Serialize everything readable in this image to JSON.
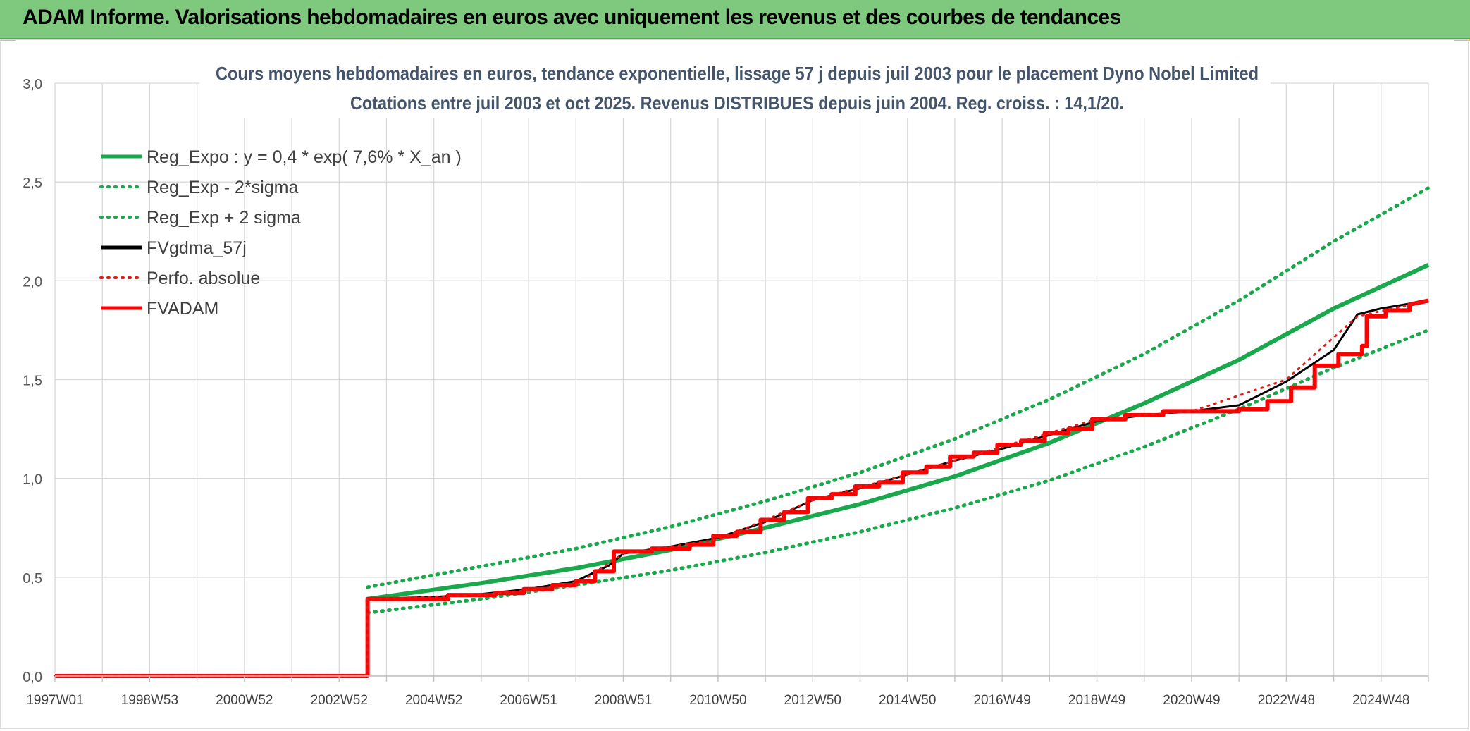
{
  "header": {
    "title": "ADAM Informe. Valorisations hebdomadaires en euros avec uniquement les revenus et des courbes de tendances"
  },
  "chart_data": {
    "type": "line",
    "title": "Cours moyens hebdomadaires en euros, tendance exponentielle, lissage 57 j depuis juil 2003 pour le placement Dyno Nobel Limited",
    "subtitle": "Cotations entre juil 2003 et oct 2025. Revenus DISTRIBUES depuis juin 2004. Reg. croiss. : 14,1/20.",
    "ylim": [
      0,
      3
    ],
    "xlim": [
      1997.0,
      2026.0
    ],
    "y_ticks": [
      "0,0",
      "0,5",
      "1,0",
      "1,5",
      "2,0",
      "2,5",
      "3,0"
    ],
    "x_ticks": [
      {
        "label": "1997W01",
        "t": 1997.0
      },
      {
        "label": "1998W53",
        "t": 1999.0
      },
      {
        "label": "2000W52",
        "t": 2001.0
      },
      {
        "label": "2002W52",
        "t": 2003.0
      },
      {
        "label": "2004W52",
        "t": 2005.0
      },
      {
        "label": "2006W51",
        "t": 2007.0
      },
      {
        "label": "2008W51",
        "t": 2009.0
      },
      {
        "label": "2010W50",
        "t": 2011.0
      },
      {
        "label": "2012W50",
        "t": 2013.0
      },
      {
        "label": "2014W50",
        "t": 2015.0
      },
      {
        "label": "2016W49",
        "t": 2017.0
      },
      {
        "label": "2018W49",
        "t": 2019.0
      },
      {
        "label": "2020W49",
        "t": 2021.0
      },
      {
        "label": "2022W48",
        "t": 2023.0
      },
      {
        "label": "2024W48",
        "t": 2025.0
      }
    ],
    "grid": true,
    "legend_position": "top-left",
    "series": [
      {
        "name": "Reg_Expo : y = 0,4 * exp( 7,6% *  X_an )",
        "color": "#1aa84c",
        "style": "solid",
        "points": [
          [
            2003.6,
            0.39
          ],
          [
            2006,
            0.47
          ],
          [
            2008,
            0.546
          ],
          [
            2010,
            0.638
          ],
          [
            2012,
            0.75
          ],
          [
            2014,
            0.87
          ],
          [
            2016,
            1.01
          ],
          [
            2018,
            1.18
          ],
          [
            2020,
            1.38
          ],
          [
            2022,
            1.6
          ],
          [
            2024,
            1.86
          ],
          [
            2026,
            2.08
          ]
        ]
      },
      {
        "name": "Reg_Exp - 2*sigma",
        "color": "#1aa84c",
        "style": "dotted",
        "points": [
          [
            2003.6,
            0.32
          ],
          [
            2006,
            0.39
          ],
          [
            2008,
            0.46
          ],
          [
            2010,
            0.535
          ],
          [
            2012,
            0.625
          ],
          [
            2014,
            0.73
          ],
          [
            2016,
            0.85
          ],
          [
            2018,
            0.99
          ],
          [
            2020,
            1.16
          ],
          [
            2022,
            1.35
          ],
          [
            2024,
            1.56
          ],
          [
            2026,
            1.75
          ]
        ]
      },
      {
        "name": "Reg_Exp + 2 sigma",
        "color": "#1aa84c",
        "style": "dotted",
        "points": [
          [
            2003.6,
            0.45
          ],
          [
            2006,
            0.555
          ],
          [
            2008,
            0.645
          ],
          [
            2010,
            0.755
          ],
          [
            2012,
            0.885
          ],
          [
            2014,
            1.03
          ],
          [
            2016,
            1.2
          ],
          [
            2018,
            1.4
          ],
          [
            2020,
            1.63
          ],
          [
            2022,
            1.9
          ],
          [
            2024,
            2.2
          ],
          [
            2026,
            2.47
          ]
        ]
      },
      {
        "name": "FVgdma_57j",
        "color": "#000000",
        "style": "solid",
        "points": [
          [
            1997,
            0
          ],
          [
            2003.6,
            0
          ],
          [
            2003.6,
            0.39
          ],
          [
            2005,
            0.4
          ],
          [
            2006,
            0.415
          ],
          [
            2007,
            0.44
          ],
          [
            2008,
            0.48
          ],
          [
            2008.7,
            0.56
          ],
          [
            2009,
            0.62
          ],
          [
            2010,
            0.655
          ],
          [
            2011,
            0.7
          ],
          [
            2012,
            0.78
          ],
          [
            2013,
            0.89
          ],
          [
            2014,
            0.95
          ],
          [
            2015,
            1.02
          ],
          [
            2016,
            1.09
          ],
          [
            2017,
            1.15
          ],
          [
            2018,
            1.22
          ],
          [
            2019,
            1.29
          ],
          [
            2020,
            1.32
          ],
          [
            2021,
            1.34
          ],
          [
            2022,
            1.37
          ],
          [
            2023,
            1.49
          ],
          [
            2024,
            1.65
          ],
          [
            2024.5,
            1.83
          ],
          [
            2025,
            1.86
          ],
          [
            2026,
            1.9
          ]
        ]
      },
      {
        "name": "Perfo. absolue",
        "color": "#e31a1a",
        "style": "dotted",
        "points": [
          [
            1997,
            0
          ],
          [
            2003.6,
            0
          ],
          [
            2003.6,
            0.39
          ],
          [
            2006,
            0.41
          ],
          [
            2008,
            0.46
          ],
          [
            2009,
            0.62
          ],
          [
            2011,
            0.69
          ],
          [
            2013,
            0.89
          ],
          [
            2015,
            1.02
          ],
          [
            2017,
            1.16
          ],
          [
            2019,
            1.3
          ],
          [
            2021,
            1.34
          ],
          [
            2023,
            1.5
          ],
          [
            2024.5,
            1.82
          ],
          [
            2026,
            1.9
          ]
        ]
      },
      {
        "name": "FVADAM",
        "color": "#ff0000",
        "style": "solid",
        "points": [
          [
            1997,
            0
          ],
          [
            2003.6,
            0
          ],
          [
            2003.6,
            0.39
          ],
          [
            2005.3,
            0.39
          ],
          [
            2005.3,
            0.41
          ],
          [
            2006.3,
            0.41
          ],
          [
            2006.3,
            0.42
          ],
          [
            2006.9,
            0.42
          ],
          [
            2006.9,
            0.44
          ],
          [
            2007.5,
            0.44
          ],
          [
            2007.5,
            0.46
          ],
          [
            2008,
            0.46
          ],
          [
            2008,
            0.48
          ],
          [
            2008.4,
            0.48
          ],
          [
            2008.4,
            0.53
          ],
          [
            2008.8,
            0.53
          ],
          [
            2008.8,
            0.63
          ],
          [
            2009.6,
            0.63
          ],
          [
            2009.6,
            0.645
          ],
          [
            2010.4,
            0.645
          ],
          [
            2010.4,
            0.665
          ],
          [
            2010.9,
            0.665
          ],
          [
            2010.9,
            0.71
          ],
          [
            2011.4,
            0.71
          ],
          [
            2011.4,
            0.73
          ],
          [
            2011.9,
            0.73
          ],
          [
            2011.9,
            0.79
          ],
          [
            2012.4,
            0.79
          ],
          [
            2012.4,
            0.83
          ],
          [
            2012.9,
            0.83
          ],
          [
            2012.9,
            0.9
          ],
          [
            2013.4,
            0.9
          ],
          [
            2013.4,
            0.92
          ],
          [
            2013.9,
            0.92
          ],
          [
            2013.9,
            0.96
          ],
          [
            2014.4,
            0.96
          ],
          [
            2014.4,
            0.98
          ],
          [
            2014.9,
            0.98
          ],
          [
            2014.9,
            1.03
          ],
          [
            2015.4,
            1.03
          ],
          [
            2015.4,
            1.06
          ],
          [
            2015.9,
            1.06
          ],
          [
            2015.9,
            1.11
          ],
          [
            2016.4,
            1.11
          ],
          [
            2016.4,
            1.13
          ],
          [
            2016.9,
            1.13
          ],
          [
            2016.9,
            1.17
          ],
          [
            2017.4,
            1.17
          ],
          [
            2017.4,
            1.19
          ],
          [
            2017.9,
            1.19
          ],
          [
            2017.9,
            1.23
          ],
          [
            2018.4,
            1.23
          ],
          [
            2018.4,
            1.25
          ],
          [
            2018.9,
            1.25
          ],
          [
            2018.9,
            1.3
          ],
          [
            2019.6,
            1.3
          ],
          [
            2019.6,
            1.32
          ],
          [
            2020.4,
            1.32
          ],
          [
            2020.4,
            1.34
          ],
          [
            2022,
            1.34
          ],
          [
            2022,
            1.35
          ],
          [
            2022.6,
            1.35
          ],
          [
            2022.6,
            1.39
          ],
          [
            2023.1,
            1.39
          ],
          [
            2023.1,
            1.46
          ],
          [
            2023.6,
            1.46
          ],
          [
            2023.6,
            1.57
          ],
          [
            2024.1,
            1.57
          ],
          [
            2024.1,
            1.63
          ],
          [
            2024.6,
            1.63
          ],
          [
            2024.6,
            1.67
          ],
          [
            2024.7,
            1.67
          ],
          [
            2024.7,
            1.82
          ],
          [
            2025.1,
            1.82
          ],
          [
            2025.1,
            1.85
          ],
          [
            2025.6,
            1.85
          ],
          [
            2025.6,
            1.88
          ],
          [
            2026,
            1.9
          ]
        ]
      }
    ]
  }
}
